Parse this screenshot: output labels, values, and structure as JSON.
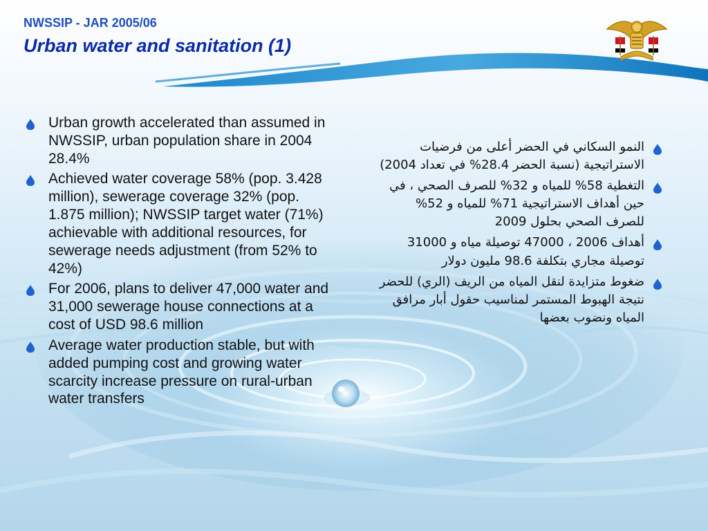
{
  "header": {
    "subtitle": "NWSSIP - JAR 2005/06",
    "title": "Urban water and sanitation (1)"
  },
  "branding": {
    "emblem_icon": "yemen-emblem-icon"
  },
  "colors": {
    "subtitle": "#1f4fbf",
    "title": "#0b2aa8",
    "wave_top": "#2f93d2",
    "bullet": "#1f63cf",
    "text": "#111111"
  },
  "content": {
    "left_bullets": [
      {
        "text": "Urban growth accelerated than assumed in NWSSIP, urban population share in 2004 28.4%"
      },
      {
        "text": "Achieved water coverage 58% (pop. 3.428 million), sewerage coverage 32% (pop. 1.875 million); NWSSIP target water (71%) achievable with additional resources, for sewerage needs adjustment (from 52% to 42%)"
      },
      {
        "text": "For 2006, plans to deliver 47,000 water and 31,000 sewerage house connections at a cost of USD 98.6 million"
      },
      {
        "text": "Average water production stable, but with added pumping cost and growing water scarcity increase pressure on rural-urban water transfers"
      }
    ],
    "right_bullets": [
      {
        "text": "النمو السكاني في الحضر أعلى من فرضيات الاستراتيجية (نسبة الحضر 28.4% في تعداد 2004)"
      },
      {
        "text": "التغطية 58% للمياه و 32% للصرف الصحي ، في حين أهداف الاستراتيجية 71% للمياه و 52% للصرف الصحي بحلول 2009"
      },
      {
        "text": "أهداف 2006 ، 47000 توصيلة مياه و 31000 توصيلة مجاري بتكلفة 98.6 مليون دولار"
      },
      {
        "text": "ضغوط متزايدة لنقل المياه من الريف (الري) للحضر نتيجة الهبوط المستمر لمناسيب حقول أبار مرافق المياه ونضوب بعضها"
      }
    ]
  }
}
